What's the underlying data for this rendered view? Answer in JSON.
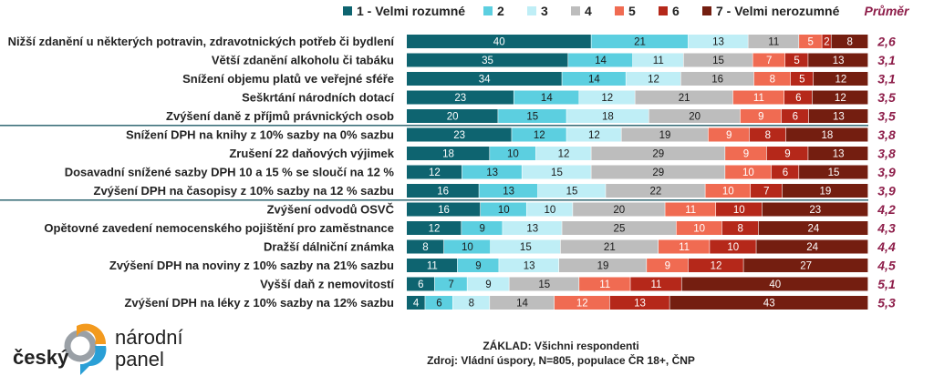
{
  "chart_data": {
    "type": "bar",
    "orientation": "horizontal",
    "stacked": true,
    "legend_position": "top",
    "average_header": "Průměr",
    "series": [
      {
        "name": "1 - Velmi rozumné",
        "color": "#0e6470"
      },
      {
        "name": "2",
        "color": "#5ccfe0"
      },
      {
        "name": "3",
        "color": "#bfeef6"
      },
      {
        "name": "4",
        "color": "#bdbdbd"
      },
      {
        "name": "5",
        "color": "#f06b52"
      },
      {
        "name": "6",
        "color": "#b5281a"
      },
      {
        "name": "7 - Velmi nerozumné",
        "color": "#741e10"
      }
    ],
    "rows": [
      {
        "label": "Nižší zdanění u některých potravin, zdravotnických potřeb či bydlení",
        "values": [
          40,
          21,
          13,
          11,
          5,
          2,
          8
        ],
        "avg": "2,6"
      },
      {
        "label": "Větší zdanění alkoholu či tabáku",
        "values": [
          35,
          14,
          11,
          15,
          7,
          5,
          13
        ],
        "avg": "3,1"
      },
      {
        "label": "Snížení objemu platů ve veřejné sféře",
        "values": [
          34,
          14,
          12,
          16,
          8,
          5,
          12
        ],
        "avg": "3,1"
      },
      {
        "label": "Seškrtání národních dotací",
        "values": [
          23,
          14,
          12,
          21,
          11,
          6,
          12
        ],
        "avg": "3,5"
      },
      {
        "label": "Zvýšení daně z příjmů právnických osob",
        "values": [
          20,
          15,
          18,
          20,
          9,
          6,
          13
        ],
        "avg": "3,5"
      },
      {
        "label": "Snížení DPH na knihy z 10% sazby na 0% sazbu",
        "values": [
          23,
          12,
          12,
          19,
          9,
          8,
          18
        ],
        "avg": "3,8"
      },
      {
        "label": "Zrušení 22 daňových výjimek",
        "values": [
          18,
          10,
          12,
          29,
          9,
          9,
          13
        ],
        "avg": "3,8"
      },
      {
        "label": "Dosavadní snížené sazby DPH 10 a 15 % se sloučí na 12 %",
        "values": [
          12,
          13,
          15,
          29,
          10,
          6,
          15
        ],
        "avg": "3,9"
      },
      {
        "label": "Zvýšení DPH na časopisy z 10% sazby na 12 % sazbu",
        "values": [
          16,
          13,
          15,
          22,
          10,
          7,
          19
        ],
        "avg": "3,9"
      },
      {
        "label": "Zvýšení odvodů OSVČ",
        "values": [
          16,
          10,
          10,
          20,
          11,
          10,
          23
        ],
        "avg": "4,2"
      },
      {
        "label": "Opětovné zavedení nemocenského pojištění pro zaměstnance",
        "values": [
          12,
          9,
          13,
          25,
          10,
          8,
          24
        ],
        "avg": "4,3"
      },
      {
        "label": "Dražší dálniční známka",
        "values": [
          8,
          10,
          15,
          21,
          11,
          10,
          24
        ],
        "avg": "4,4"
      },
      {
        "label": "Zvýšení DPH na noviny z 10% sazby na 21% sazbu",
        "values": [
          11,
          9,
          13,
          19,
          9,
          12,
          27
        ],
        "avg": "4,5"
      },
      {
        "label": "Vyšší daň z nemovitostí",
        "values": [
          6,
          7,
          9,
          15,
          11,
          11,
          40
        ],
        "avg": "5,1"
      },
      {
        "label": "Zvýšení DPH na léky z 10% sazby na 12% sazbu",
        "values": [
          4,
          6,
          8,
          14,
          12,
          13,
          43
        ],
        "avg": "5,3"
      }
    ],
    "group_separators_after_rows": [
      4,
      8
    ]
  },
  "footnote": {
    "base": "ZÁKLAD: Všichni respondenti",
    "source": "Zdroj: Vládní úspory, N=805, populace ČR 18+, ČNP"
  },
  "logo": {
    "word1": "český",
    "word2": "národní",
    "word3": "panel",
    "colors": {
      "orange": "#f39a1e",
      "blue": "#2a9fd6",
      "gray": "#9aa0a6"
    }
  }
}
